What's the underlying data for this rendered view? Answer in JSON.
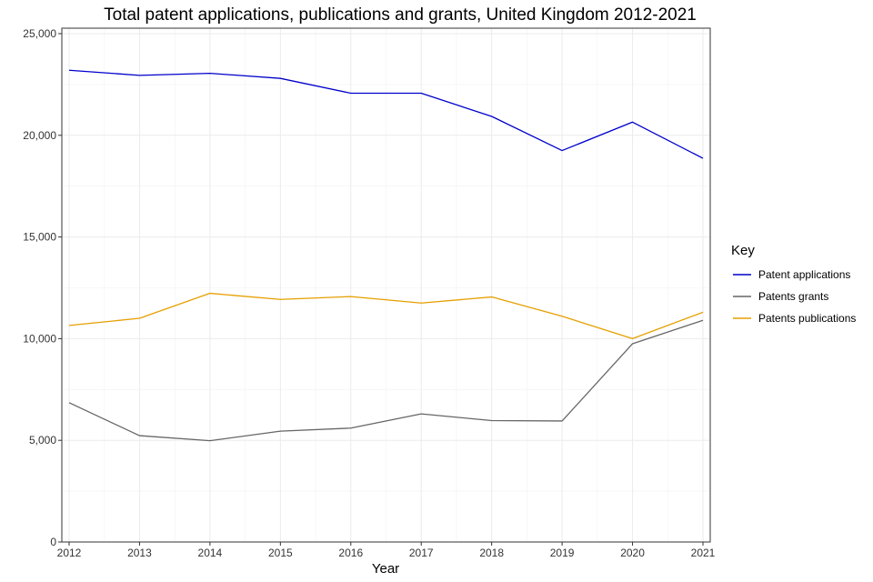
{
  "chart_data": {
    "type": "line",
    "title": "Total patent applications, publications and grants, United Kingdom 2012-2021",
    "xlabel": "Year",
    "ylabel": "",
    "x": [
      2012,
      2013,
      2014,
      2015,
      2016,
      2017,
      2018,
      2019,
      2020,
      2021
    ],
    "x_tick_labels": [
      "2012",
      "2013",
      "2014",
      "2015",
      "2016",
      "2017",
      "2018",
      "2019",
      "2020",
      "2021"
    ],
    "ylim": [
      0,
      25000
    ],
    "y_ticks": [
      0,
      5000,
      10000,
      15000,
      20000,
      25000
    ],
    "y_tick_labels": [
      "0",
      "5,000",
      "10,000",
      "15,000",
      "20,000",
      "25,000"
    ],
    "grid": true,
    "legend": {
      "title": "Key",
      "position": "right"
    },
    "series": [
      {
        "name": "Patent applications",
        "color": "#0000cc",
        "values": [
          23200,
          22950,
          23050,
          22800,
          22070,
          22070,
          20930,
          19250,
          20650,
          18870
        ]
      },
      {
        "name": "Patents grants",
        "color": "#666666",
        "values": [
          6850,
          5230,
          4980,
          5450,
          5600,
          6300,
          5970,
          5950,
          9750,
          10900
        ]
      },
      {
        "name": "Patents publications",
        "color": "#e69f00",
        "values": [
          10650,
          11000,
          12230,
          11930,
          12070,
          11750,
          12050,
          11100,
          10000,
          11300
        ]
      }
    ]
  }
}
